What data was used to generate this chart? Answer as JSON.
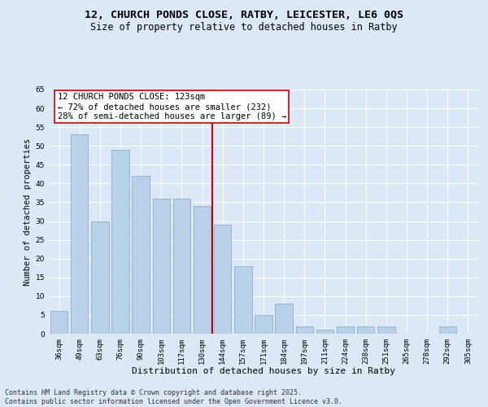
{
  "title_line1": "12, CHURCH PONDS CLOSE, RATBY, LEICESTER, LE6 0QS",
  "title_line2": "Size of property relative to detached houses in Ratby",
  "xlabel": "Distribution of detached houses by size in Ratby",
  "ylabel": "Number of detached properties",
  "categories": [
    "36sqm",
    "49sqm",
    "63sqm",
    "76sqm",
    "90sqm",
    "103sqm",
    "117sqm",
    "130sqm",
    "144sqm",
    "157sqm",
    "171sqm",
    "184sqm",
    "197sqm",
    "211sqm",
    "224sqm",
    "238sqm",
    "251sqm",
    "265sqm",
    "278sqm",
    "292sqm",
    "305sqm"
  ],
  "values": [
    6,
    53,
    30,
    49,
    42,
    36,
    36,
    34,
    29,
    18,
    5,
    8,
    2,
    1,
    2,
    2,
    2,
    0,
    0,
    2,
    0
  ],
  "bar_color": "#b8d0e8",
  "bar_edge_color": "#7aaac8",
  "vline_x": 7.5,
  "vline_color": "#cc0000",
  "annotation_text": "12 CHURCH PONDS CLOSE: 123sqm\n← 72% of detached houses are smaller (232)\n28% of semi-detached houses are larger (89) →",
  "annotation_box_color": "#ffffff",
  "annotation_box_edge": "#cc0000",
  "ylim": [
    0,
    65
  ],
  "yticks": [
    0,
    5,
    10,
    15,
    20,
    25,
    30,
    35,
    40,
    45,
    50,
    55,
    60,
    65
  ],
  "bg_color": "#dce8f5",
  "grid_color": "#ffffff",
  "footnote": "Contains HM Land Registry data © Crown copyright and database right 2025.\nContains public sector information licensed under the Open Government Licence v3.0.",
  "title_fontsize": 9.5,
  "subtitle_fontsize": 8.5,
  "xlabel_fontsize": 8,
  "ylabel_fontsize": 7.5,
  "tick_fontsize": 6.5,
  "annotation_fontsize": 7.5,
  "footnote_fontsize": 6
}
